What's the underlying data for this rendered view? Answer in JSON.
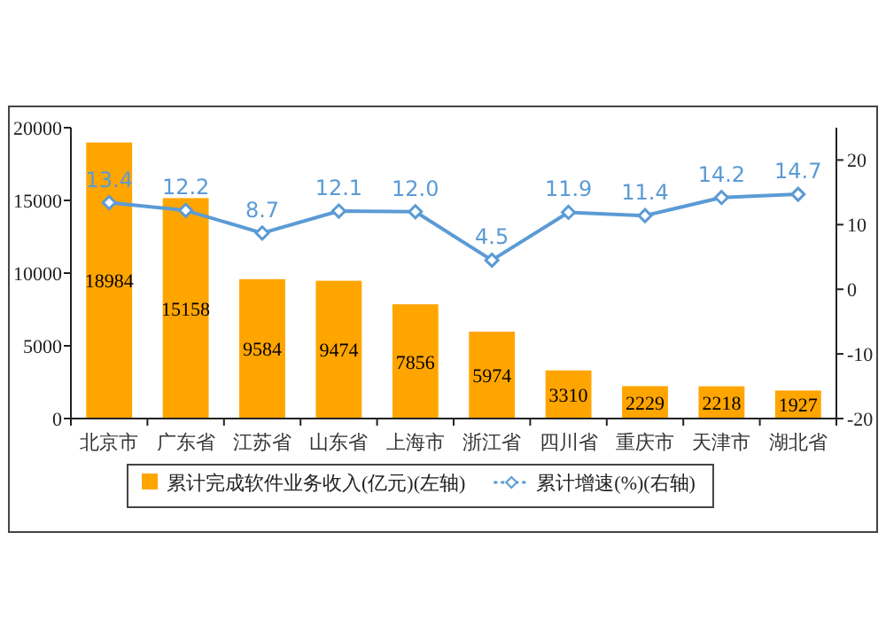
{
  "chart_data": {
    "type": "bar",
    "categories": [
      "北京市",
      "广东省",
      "江苏省",
      "山东省",
      "上海市",
      "浙江省",
      "四川省",
      "重庆市",
      "天津市",
      "湖北省"
    ],
    "series": [
      {
        "name": "累计完成软件业务收入(亿元)(左轴)",
        "color": "#ffa500",
        "values": [
          18984,
          15158,
          9584,
          9474,
          7856,
          5974,
          3310,
          2229,
          2218,
          1927
        ]
      },
      {
        "name": "累计增速(%)(右轴)",
        "type": "line",
        "axis": "y2",
        "color": "#5b9bd5",
        "marker": "diamond",
        "values": [
          13.4,
          12.2,
          8.7,
          12.1,
          12.0,
          4.5,
          11.9,
          11.4,
          14.2,
          14.7
        ],
        "value_labels": [
          "13.4",
          "12.2",
          "8.7",
          "12.1",
          "12.0",
          "4.5",
          "11.9",
          "11.4",
          "14.2",
          "14.7"
        ]
      }
    ],
    "ylim": [
      0,
      20000
    ],
    "yticks": [
      0,
      5000,
      10000,
      15000,
      20000
    ],
    "y2lim": [
      -20,
      25
    ],
    "y2ticks": [
      -20,
      -10,
      0,
      10,
      20
    ],
    "data_labels": true,
    "legend": "bottom",
    "grid": false
  }
}
